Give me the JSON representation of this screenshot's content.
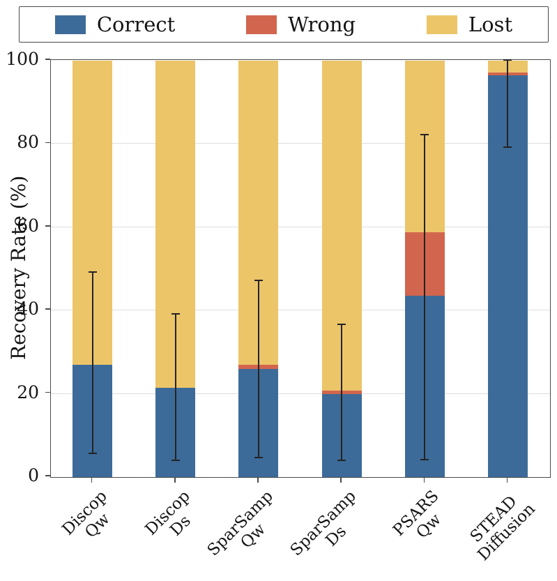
{
  "chart_data": {
    "type": "bar",
    "stacked": true,
    "title": "",
    "ylabel": "Recovery Rate (%)",
    "xlabel": "",
    "ylim": [
      0,
      100
    ],
    "yticks": [
      0,
      20,
      40,
      60,
      80,
      100
    ],
    "grid": "horizontal",
    "legend_position": "top",
    "categories": [
      [
        "Discop",
        "Qw"
      ],
      [
        "Discop",
        "Ds"
      ],
      [
        "SparSamp",
        "Qw"
      ],
      [
        "SparSamp",
        "Ds"
      ],
      [
        "PSARS",
        "Qw"
      ],
      [
        "STEAD",
        "Diffusion"
      ]
    ],
    "series": [
      {
        "name": "Correct",
        "color": "#3d6b99",
        "values": [
          27,
          21.5,
          26,
          20,
          43.5,
          96.5
        ]
      },
      {
        "name": "Wrong",
        "color": "#d2654d",
        "values": [
          0,
          0,
          1,
          0.8,
          15.3,
          0.7
        ]
      },
      {
        "name": "Lost",
        "color": "#ecc569",
        "values": [
          73,
          78.5,
          73,
          79.2,
          41.2,
          2.8
        ]
      }
    ],
    "error_bars": [
      {
        "low": 5.5,
        "high": 49
      },
      {
        "low": 3.8,
        "high": 39
      },
      {
        "low": 4.5,
        "high": 47
      },
      {
        "low": 3.8,
        "high": 36.5
      },
      {
        "low": 4.0,
        "high": 82
      },
      {
        "low": 79.0,
        "high": 100
      }
    ]
  }
}
